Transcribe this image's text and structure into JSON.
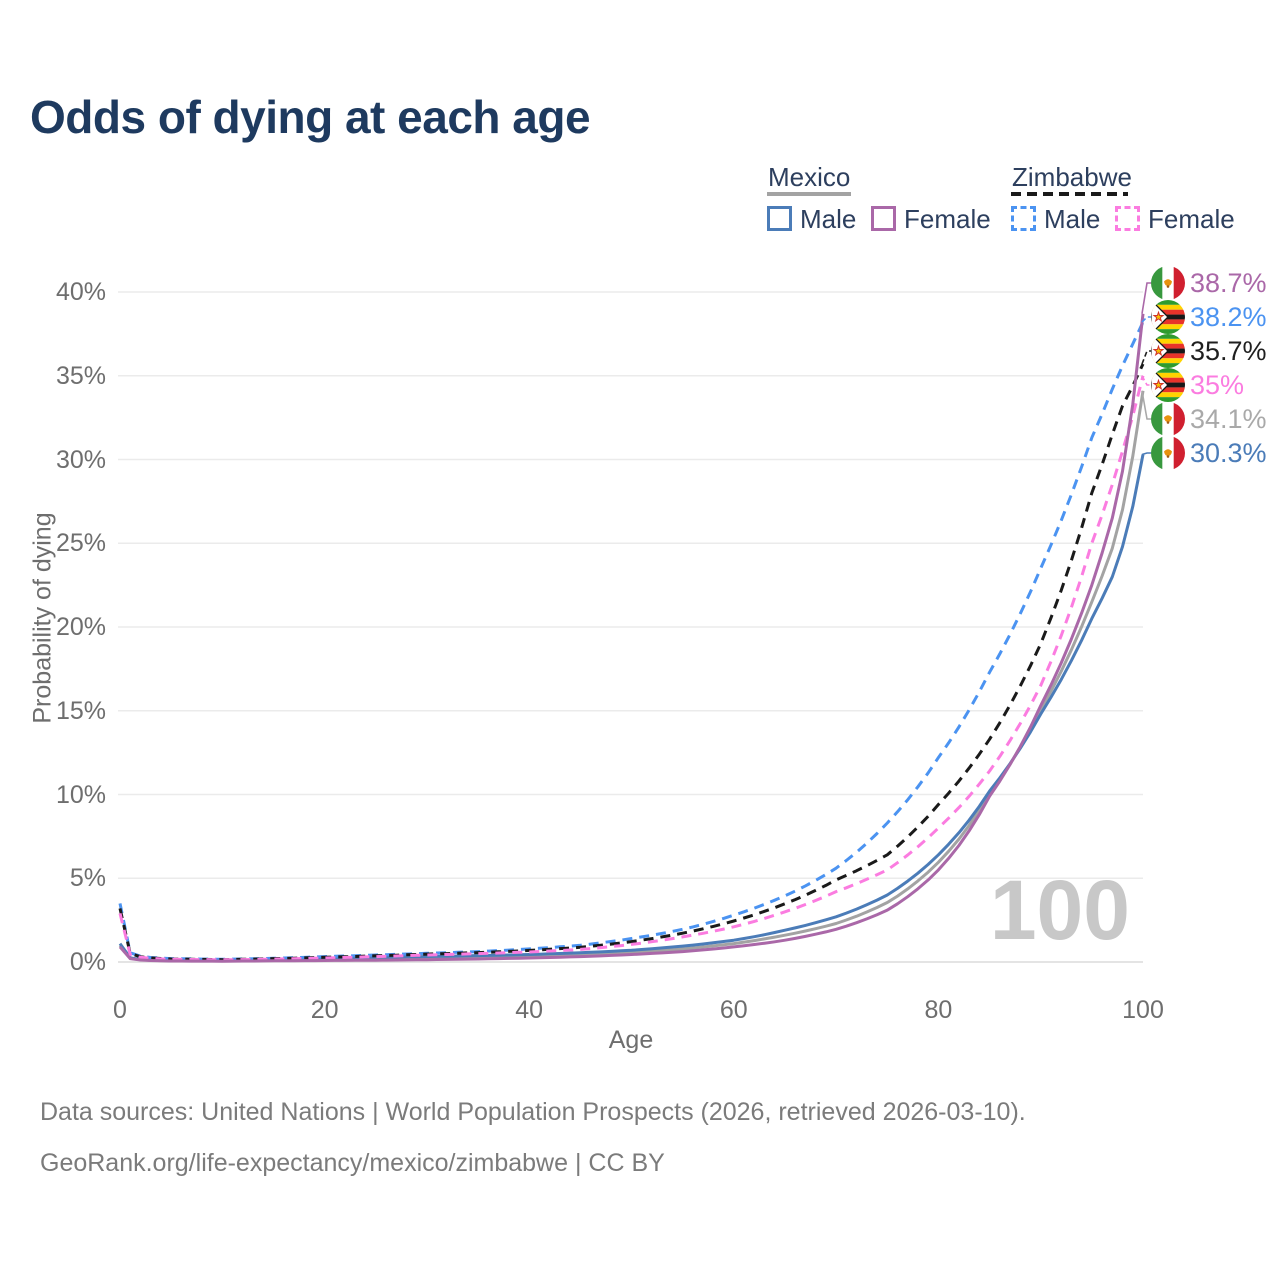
{
  "title": "Odds of dying at each age",
  "legend": {
    "groups": [
      {
        "label": "Mexico",
        "line_style": "solid",
        "line_color": "#a3a3a3",
        "items": [
          {
            "label": "Male",
            "color": "#4b7cb8",
            "style": "solid"
          },
          {
            "label": "Female",
            "color": "#aa68a8",
            "style": "solid"
          }
        ]
      },
      {
        "label": "Zimbabwe",
        "line_style": "dashed",
        "line_color": "#1a1a1a",
        "items": [
          {
            "label": "Male",
            "color": "#4b93f1",
            "style": "dashed"
          },
          {
            "label": "Female",
            "color": "#fb7ce0",
            "style": "dashed"
          }
        ]
      }
    ]
  },
  "chart_data": {
    "type": "line",
    "title": "Odds of dying at each age",
    "xlabel": "Age",
    "ylabel": "Probability of dying",
    "xlim": [
      0,
      100
    ],
    "ylim": [
      0,
      40
    ],
    "x_ticks": [
      0,
      20,
      40,
      60,
      80,
      100
    ],
    "y_ticks": [
      0,
      5,
      10,
      15,
      20,
      25,
      30,
      35,
      40
    ],
    "y_tick_suffix": "%",
    "grid": "horizontal",
    "legend_position": "top-right",
    "x": [
      0,
      1,
      2,
      3,
      5,
      10,
      15,
      20,
      25,
      30,
      35,
      40,
      45,
      50,
      55,
      60,
      65,
      70,
      75,
      80,
      85,
      90,
      95,
      97,
      98,
      99,
      100
    ],
    "series": [
      {
        "name": "Mexico Combined",
        "country": "Mexico",
        "sex": "both",
        "color": "#a3a3a3",
        "dash": false,
        "values": [
          1.0,
          0.22,
          0.13,
          0.1,
          0.07,
          0.06,
          0.1,
          0.15,
          0.19,
          0.23,
          0.28,
          0.34,
          0.43,
          0.57,
          0.78,
          1.1,
          1.6,
          2.3,
          3.55,
          5.95,
          10.05,
          15.05,
          21.5,
          24.7,
          27.0,
          30.2,
          34.1
        ],
        "end_value": "34.1%"
      },
      {
        "name": "Mexico Male",
        "country": "Mexico",
        "sex": "male",
        "color": "#4b7cb8",
        "dash": false,
        "values": [
          1.1,
          0.25,
          0.15,
          0.11,
          0.08,
          0.07,
          0.12,
          0.22,
          0.28,
          0.33,
          0.38,
          0.45,
          0.55,
          0.7,
          0.95,
          1.3,
          1.9,
          2.7,
          4.0,
          6.4,
          10.2,
          14.8,
          20.5,
          23.0,
          24.8,
          27.2,
          30.3
        ],
        "end_value": "30.3%"
      },
      {
        "name": "Zimbabwe Male",
        "country": "Zimbabwe",
        "sex": "male",
        "color": "#4b93f1",
        "dash": true,
        "values": [
          3.5,
          0.55,
          0.35,
          0.27,
          0.2,
          0.16,
          0.22,
          0.32,
          0.42,
          0.52,
          0.62,
          0.78,
          1.0,
          1.4,
          1.95,
          2.8,
          3.95,
          5.6,
          8.3,
          12.2,
          17.3,
          23.5,
          31.3,
          34.2,
          35.6,
          36.9,
          38.2
        ],
        "end_value": "38.2%"
      },
      {
        "name": "Zimbabwe Combined",
        "country": "Zimbabwe",
        "sex": "both",
        "color": "#1a1a1a",
        "dash": true,
        "values": [
          3.2,
          0.5,
          0.31,
          0.24,
          0.18,
          0.14,
          0.2,
          0.28,
          0.37,
          0.47,
          0.56,
          0.69,
          0.88,
          1.22,
          1.72,
          2.45,
          3.48,
          4.9,
          6.4,
          9.4,
          13.3,
          19.0,
          28.0,
          31.5,
          33.2,
          34.4,
          35.7
        ],
        "end_value": "35.7%"
      },
      {
        "name": "Zimbabwe Female",
        "country": "Zimbabwe",
        "sex": "female",
        "color": "#fb7ce0",
        "dash": true,
        "values": [
          2.9,
          0.45,
          0.28,
          0.22,
          0.16,
          0.13,
          0.17,
          0.24,
          0.32,
          0.42,
          0.5,
          0.6,
          0.75,
          1.05,
          1.5,
          2.1,
          3.0,
          4.2,
          5.5,
          8.0,
          11.4,
          16.5,
          25.0,
          28.5,
          30.5,
          32.6,
          35.0
        ],
        "end_value": "35%"
      },
      {
        "name": "Mexico Female",
        "country": "Mexico",
        "sex": "female",
        "color": "#aa68a8",
        "dash": false,
        "values": [
          0.9,
          0.2,
          0.12,
          0.09,
          0.06,
          0.05,
          0.07,
          0.09,
          0.11,
          0.14,
          0.18,
          0.24,
          0.32,
          0.45,
          0.62,
          0.9,
          1.3,
          1.95,
          3.1,
          5.5,
          9.9,
          15.3,
          22.5,
          26.5,
          29.3,
          33.3,
          38.7
        ],
        "end_value": "38.7%"
      }
    ]
  },
  "end_labels": [
    {
      "value": "38.7%",
      "pct": 38.7,
      "color": "#aa68a8",
      "flag": "mexico",
      "icon": "mexico-flag-icon",
      "series": "Mexico Female",
      "dash": false
    },
    {
      "value": "38.2%",
      "pct": 38.2,
      "color": "#4b93f1",
      "flag": "zimbabwe",
      "icon": "zimbabwe-flag-icon",
      "series": "Zimbabwe Male",
      "dash": true
    },
    {
      "value": "35.7%",
      "pct": 35.7,
      "color": "#1f1f1f",
      "flag": "zimbabwe",
      "icon": "zimbabwe-flag-icon",
      "series": "Zimbabwe Combined",
      "dash": true
    },
    {
      "value": "35%",
      "pct": 35.0,
      "color": "#fb7ce0",
      "flag": "zimbabwe",
      "icon": "zimbabwe-flag-icon",
      "series": "Zimbabwe Female",
      "dash": true
    },
    {
      "value": "34.1%",
      "pct": 34.1,
      "color": "#a9a9a9",
      "flag": "mexico",
      "icon": "mexico-flag-icon",
      "series": "Mexico Combined",
      "dash": false
    },
    {
      "value": "30.3%",
      "pct": 30.3,
      "color": "#4b7cb8",
      "flag": "mexico",
      "icon": "mexico-flag-icon",
      "series": "Mexico Male",
      "dash": false
    }
  ],
  "watermark": "100",
  "footer": {
    "line1": "Data sources: United Nations | World Population Prospects (2026, retrieved 2026-03-10).",
    "line2": "GeoRank.org/life-expectancy/mexico/zimbabwe | CC BY"
  }
}
